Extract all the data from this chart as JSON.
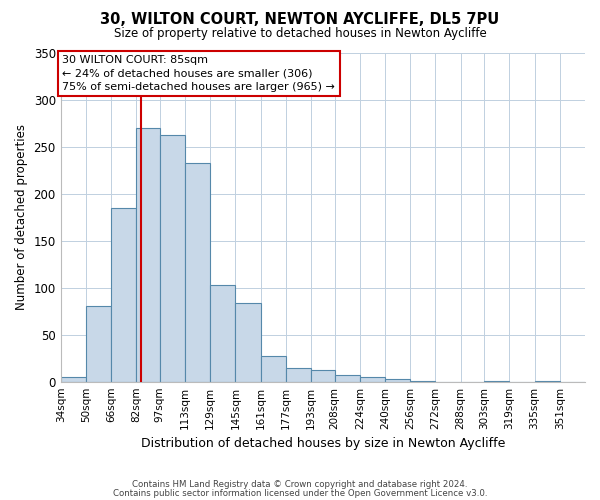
{
  "title": "30, WILTON COURT, NEWTON AYCLIFFE, DL5 7PU",
  "subtitle": "Size of property relative to detached houses in Newton Aycliffe",
  "xlabel": "Distribution of detached houses by size in Newton Aycliffe",
  "ylabel": "Number of detached properties",
  "bar_color": "#c8d8e8",
  "bar_edge_color": "#5588aa",
  "vline_x": 85,
  "vline_color": "#cc0000",
  "categories": [
    "34sqm",
    "50sqm",
    "66sqm",
    "82sqm",
    "97sqm",
    "113sqm",
    "129sqm",
    "145sqm",
    "161sqm",
    "177sqm",
    "193sqm",
    "208sqm",
    "224sqm",
    "240sqm",
    "256sqm",
    "272sqm",
    "288sqm",
    "303sqm",
    "319sqm",
    "335sqm",
    "351sqm"
  ],
  "bin_edges": [
    34,
    50,
    66,
    82,
    97,
    113,
    129,
    145,
    161,
    177,
    193,
    208,
    224,
    240,
    256,
    272,
    288,
    303,
    319,
    335,
    351,
    367
  ],
  "values": [
    5,
    80,
    185,
    270,
    262,
    233,
    103,
    84,
    27,
    15,
    12,
    7,
    5,
    3,
    1,
    0,
    0,
    1,
    0,
    1,
    0
  ],
  "ylim": [
    0,
    350
  ],
  "yticks": [
    0,
    50,
    100,
    150,
    200,
    250,
    300,
    350
  ],
  "annotation_title": "30 WILTON COURT: 85sqm",
  "annotation_line1": "← 24% of detached houses are smaller (306)",
  "annotation_line2": "75% of semi-detached houses are larger (965) →",
  "annotation_box_color": "#ffffff",
  "annotation_box_edge": "#cc0000",
  "footer_line1": "Contains HM Land Registry data © Crown copyright and database right 2024.",
  "footer_line2": "Contains public sector information licensed under the Open Government Licence v3.0.",
  "background_color": "#ffffff",
  "grid_color": "#c0d0e0"
}
